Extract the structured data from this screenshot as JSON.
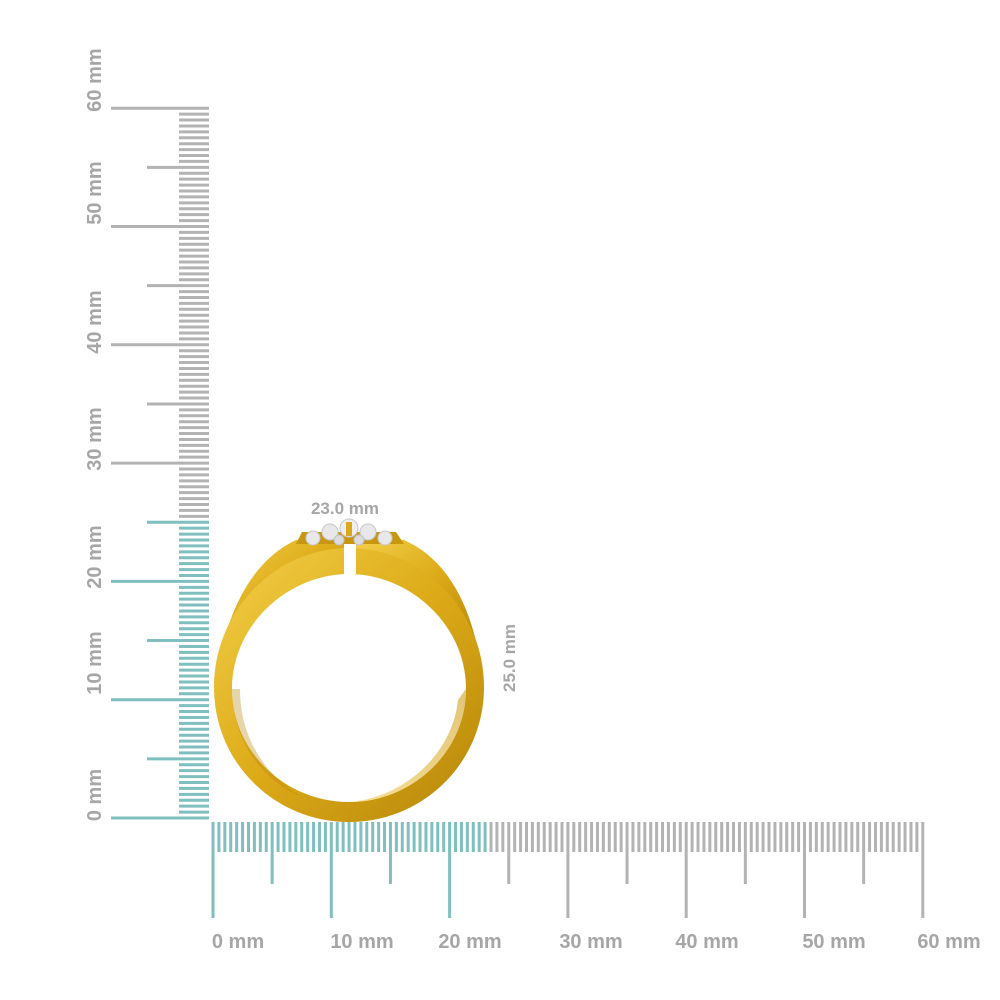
{
  "scale": {
    "unit": "mm",
    "major_step_mm": 10,
    "max_mm": 60,
    "highlight_color": "#7fbfbf",
    "neutral_color": "#b3b3b3",
    "label_color": "#a6a6a6",
    "x_labels": [
      "0 mm",
      "10 mm",
      "20 mm",
      "30 mm",
      "40 mm",
      "50 mm",
      "60 mm"
    ],
    "y_labels": [
      "0 mm",
      "10 mm",
      "20 mm",
      "30 mm",
      "40 mm",
      "50 mm",
      "60 mm"
    ]
  },
  "ring": {
    "width_mm": 23.0,
    "height_mm": 25.0,
    "width_label": "23.0 mm",
    "height_label": "25.0 mm",
    "metal_color": "#e2b21f",
    "metal_dark": "#b88a0c",
    "stone_color": "#e8e8ea"
  }
}
